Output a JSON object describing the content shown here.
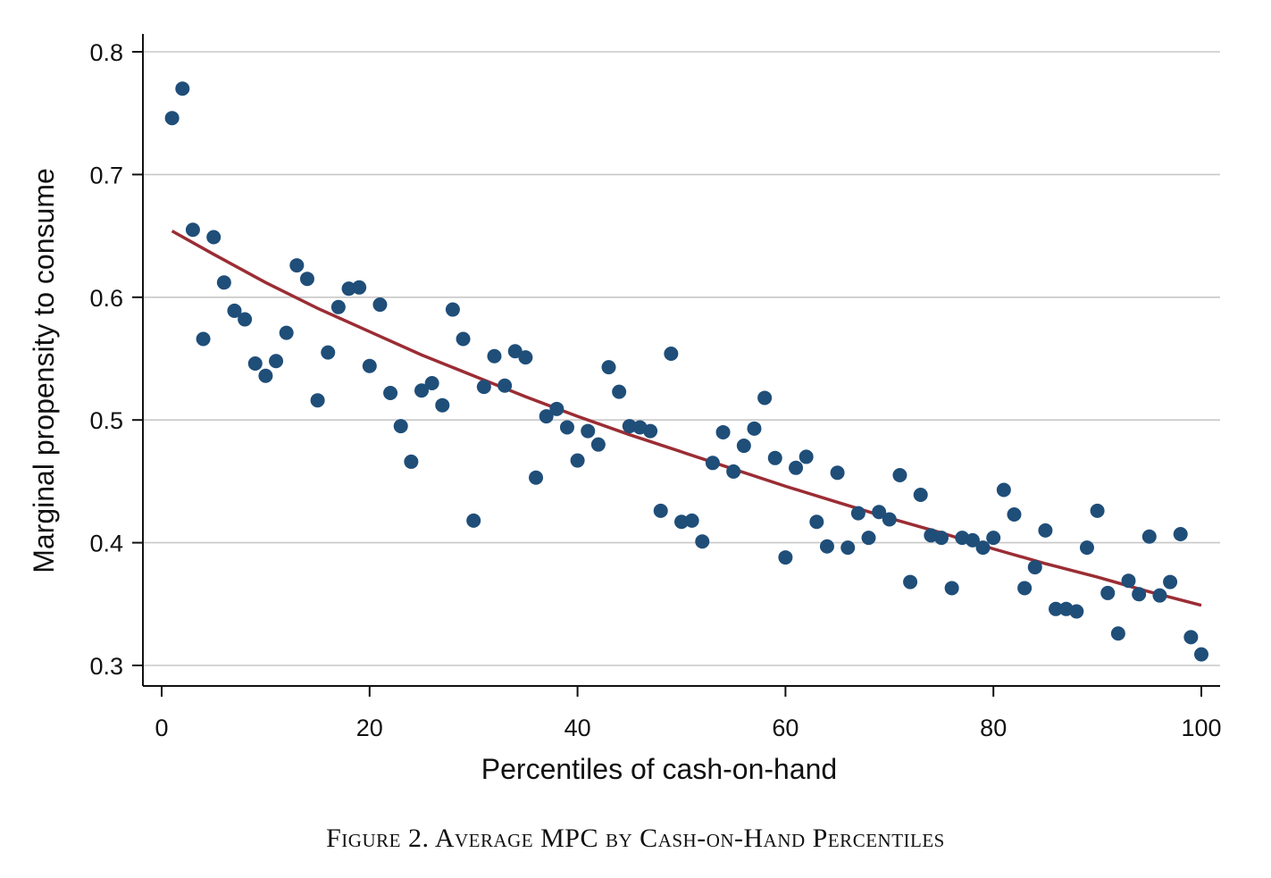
{
  "figure_caption": "Figure 2. Average MPC by Cash-on-Hand Percentiles",
  "colors": {
    "points": "#1f4e79",
    "fit_line": "#9b2d34",
    "grid": "#c8c8c8",
    "axis": "#111111"
  },
  "chart_data": {
    "type": "scatter",
    "title": "",
    "xlabel": "Percentiles of cash-on-hand",
    "ylabel": "Marginal propensity to consume",
    "xlim": [
      0,
      100
    ],
    "ylim": [
      0.3,
      0.8
    ],
    "x_ticks": [
      0,
      20,
      40,
      60,
      80,
      100
    ],
    "x_tick_labels": [
      "0",
      "20",
      "40",
      "60",
      "80",
      "100"
    ],
    "y_ticks": [
      0.3,
      0.4,
      0.5,
      0.6,
      0.7,
      0.8
    ],
    "y_tick_labels": [
      "0.3",
      "0.4",
      "0.5",
      "0.6",
      "0.7",
      "0.8"
    ],
    "grid": "horizontal",
    "series": [
      {
        "type": "scatter",
        "x": [
          1,
          2,
          3,
          4,
          5,
          6,
          7,
          8,
          9,
          10,
          11,
          12,
          13,
          14,
          15,
          16,
          17,
          18,
          19,
          20,
          21,
          22,
          23,
          24,
          25,
          26,
          27,
          28,
          29,
          30,
          31,
          32,
          33,
          34,
          35,
          36,
          37,
          38,
          39,
          40,
          41,
          42,
          43,
          44,
          45,
          46,
          47,
          48,
          49,
          50,
          51,
          52,
          53,
          54,
          55,
          56,
          57,
          58,
          59,
          60,
          61,
          62,
          63,
          64,
          65,
          66,
          67,
          68,
          69,
          70,
          71,
          72,
          73,
          74,
          75,
          76,
          77,
          78,
          79,
          80,
          81,
          82,
          83,
          84,
          85,
          86,
          87,
          88,
          89,
          90,
          91,
          92,
          93,
          94,
          95,
          96,
          97,
          98,
          99,
          100
        ],
        "y": [
          0.746,
          0.77,
          0.655,
          0.566,
          0.649,
          0.612,
          0.589,
          0.582,
          0.546,
          0.536,
          0.548,
          0.571,
          0.626,
          0.615,
          0.516,
          0.555,
          0.592,
          0.607,
          0.608,
          0.544,
          0.594,
          0.522,
          0.495,
          0.466,
          0.524,
          0.53,
          0.512,
          0.59,
          0.566,
          0.418,
          0.527,
          0.552,
          0.528,
          0.556,
          0.551,
          0.453,
          0.503,
          0.509,
          0.494,
          0.467,
          0.491,
          0.48,
          0.543,
          0.523,
          0.495,
          0.494,
          0.491,
          0.426,
          0.554,
          0.417,
          0.418,
          0.401,
          0.465,
          0.49,
          0.458,
          0.479,
          0.493,
          0.518,
          0.469,
          0.388,
          0.461,
          0.47,
          0.417,
          0.397,
          0.457,
          0.396,
          0.424,
          0.404,
          0.425,
          0.419,
          0.455,
          0.368,
          0.439,
          0.406,
          0.404,
          0.363,
          0.404,
          0.402,
          0.396,
          0.404,
          0.443,
          0.423,
          0.363,
          0.38,
          0.41,
          0.346,
          0.346,
          0.344,
          0.396,
          0.426,
          0.359,
          0.326,
          0.369,
          0.358,
          0.405,
          0.357,
          0.368,
          0.407,
          0.323,
          0.309
        ]
      },
      {
        "type": "line",
        "x": [
          1,
          5,
          10,
          15,
          20,
          25,
          30,
          35,
          40,
          45,
          50,
          55,
          60,
          65,
          70,
          75,
          80,
          85,
          90,
          95,
          100
        ],
        "y": [
          0.654,
          0.635,
          0.612,
          0.591,
          0.572,
          0.553,
          0.536,
          0.519,
          0.503,
          0.488,
          0.474,
          0.46,
          0.446,
          0.433,
          0.42,
          0.408,
          0.395,
          0.383,
          0.372,
          0.36,
          0.349
        ]
      }
    ]
  }
}
